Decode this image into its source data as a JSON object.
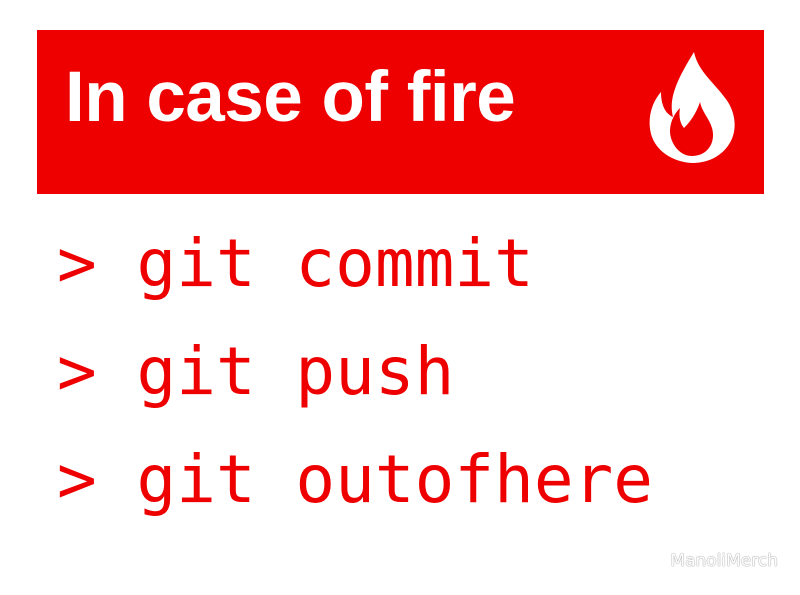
{
  "banner": {
    "title": "In case of fire",
    "background_color": "#ee0000",
    "text_color": "#ffffff",
    "icon": "flame-icon"
  },
  "commands": [
    {
      "text": "> git commit"
    },
    {
      "text": "> git push"
    },
    {
      "text": "> git outofhere"
    }
  ],
  "command_color": "#ee0000",
  "watermark": "ManoliMerch"
}
